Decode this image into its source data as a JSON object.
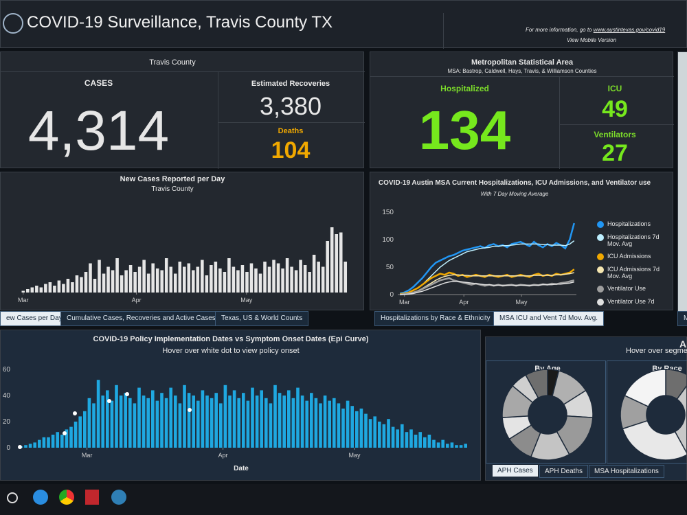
{
  "header": {
    "title": "COVID-19 Surveillance, Travis County TX",
    "info": "For more information, go to",
    "link": "www.austintexas.gov/covid19",
    "mobile": "View Mobile Version"
  },
  "travis": {
    "title": "Travis County",
    "cases_label": "CASES",
    "cases": "4,314",
    "recoveries_label": "Estimated Recoveries",
    "recoveries": "3,380",
    "deaths_label": "Deaths",
    "deaths": "104"
  },
  "msa": {
    "title": "Metropolitan Statistical Area",
    "subtitle": "MSA: Bastrop, Caldwell, Hays, Travis, & Williamson Counties",
    "hosp_label": "Hospitalized",
    "hosp": "134",
    "icu_label": "ICU",
    "icu": "49",
    "vent_label": "Ventilators",
    "vent": "27"
  },
  "tabs": [
    "ew Cases per Day",
    "Cumulative Cases, Recoveries and Active Cases",
    "Texas, US & World Counts",
    "Hospitalizations by Race & Ethnicity",
    "MSA ICU and Vent 7d Mov. Avg.",
    "M"
  ],
  "right_panel": {
    "title": "A",
    "subtitle": "Hover over segme",
    "tabs": [
      "APH Cases",
      "APH Deaths",
      "MSA Hospitalizations"
    ]
  },
  "chart_data": [
    {
      "type": "bar",
      "title": "New Cases Reported per Day",
      "subtitle": "Travis County",
      "color": "#e6e6e6",
      "grid": false,
      "xlim": [
        0,
        76
      ],
      "ylim": [
        0,
        100
      ],
      "xticks": [
        {
          "value": 3.5,
          "label": "Mar"
        },
        {
          "value": 28.8,
          "label": "Apr"
        },
        {
          "value": 53.4,
          "label": "May"
        }
      ],
      "values": [
        0,
        0,
        0,
        2,
        4,
        6,
        8,
        6,
        10,
        12,
        8,
        14,
        10,
        16,
        12,
        20,
        18,
        24,
        34,
        16,
        38,
        22,
        30,
        26,
        40,
        20,
        26,
        32,
        24,
        30,
        38,
        22,
        34,
        28,
        26,
        40,
        30,
        22,
        36,
        30,
        34,
        26,
        30,
        38,
        20,
        32,
        36,
        28,
        24,
        40,
        30,
        26,
        32,
        24,
        34,
        28,
        22,
        36,
        30,
        38,
        34,
        28,
        40,
        30,
        26,
        38,
        32,
        24,
        44,
        36,
        30,
        60,
        76,
        68,
        70,
        36
      ]
    },
    {
      "type": "line",
      "title": "COVID-19 Austin MSA Current Hospitalizations, ICU Admissions, and Ventilator use",
      "subtitle": "With 7 Day Moving Average",
      "grid": false,
      "xlim": [
        0,
        40
      ],
      "ylim": [
        0,
        150
      ],
      "yticks": [
        0,
        50,
        100,
        150
      ],
      "xticks": [
        {
          "value": 1.5,
          "label": "Mar"
        },
        {
          "value": 14.8,
          "label": "Apr"
        },
        {
          "value": 27.7,
          "label": "May"
        }
      ],
      "series": [
        {
          "name": "Hospitalizations",
          "color": "#2196f3",
          "values": [
            2,
            4,
            8,
            14,
            22,
            30,
            40,
            50,
            58,
            62,
            66,
            70,
            72,
            76,
            80,
            82,
            84,
            86,
            88,
            85,
            90,
            92,
            88,
            90,
            86,
            92,
            94,
            96,
            92,
            88,
            96,
            90,
            86,
            92,
            88,
            94,
            90,
            84,
            100,
            130
          ]
        },
        {
          "name": "Hospitalizations 7d Mov. Avg",
          "color": "#bdefff",
          "values": [
            1,
            2,
            4,
            8,
            12,
            18,
            26,
            34,
            42,
            50,
            56,
            62,
            66,
            70,
            74,
            78,
            80,
            82,
            84,
            85,
            86,
            88,
            88,
            89,
            89,
            90,
            91,
            92,
            92,
            92,
            92,
            92,
            91,
            91,
            90,
            90,
            90,
            89,
            92,
            98
          ]
        },
        {
          "name": "ICU Admissions",
          "color": "#f0a800",
          "values": [
            1,
            2,
            4,
            8,
            12,
            18,
            24,
            30,
            34,
            38,
            36,
            40,
            38,
            34,
            36,
            32,
            34,
            36,
            34,
            32,
            36,
            34,
            32,
            34,
            36,
            32,
            34,
            36,
            34,
            32,
            36,
            38,
            34,
            36,
            34,
            38,
            36,
            38,
            40,
            46
          ]
        },
        {
          "name": "ICU Admissions 7d Mov. Avg",
          "color": "#f5e6b0",
          "values": [
            0,
            1,
            2,
            4,
            7,
            11,
            16,
            21,
            26,
            30,
            33,
            35,
            36,
            36,
            35,
            35,
            34,
            34,
            34,
            34,
            34,
            34,
            34,
            34,
            34,
            34,
            34,
            34,
            34,
            34,
            35,
            35,
            35,
            35,
            35,
            36,
            36,
            37,
            38,
            40
          ]
        },
        {
          "name": "Ventilator Use",
          "color": "#9e9e9e",
          "values": [
            0,
            1,
            2,
            4,
            6,
            10,
            14,
            18,
            22,
            26,
            28,
            30,
            26,
            24,
            22,
            20,
            18,
            20,
            18,
            16,
            18,
            16,
            18,
            16,
            17,
            18,
            16,
            18,
            17,
            16,
            18,
            17,
            19,
            18,
            20,
            19,
            21,
            22,
            24,
            26
          ]
        },
        {
          "name": "Ventilator Use 7d",
          "color": "#e0e0e0",
          "values": [
            0,
            0,
            1,
            2,
            4,
            6,
            9,
            12,
            15,
            18,
            21,
            23,
            24,
            24,
            23,
            22,
            21,
            20,
            19,
            18,
            18,
            17,
            17,
            17,
            17,
            17,
            17,
            17,
            17,
            17,
            17,
            17,
            18,
            18,
            18,
            19,
            19,
            20,
            21,
            23
          ]
        }
      ]
    },
    {
      "type": "bar",
      "title": "COVID-19 Policy Implementation Dates vs Symptom Onset Dates (Epi Curve)",
      "subtitle": "Hover over white dot to view policy onset",
      "x_label": "Date",
      "color": "#1fa8e0",
      "grid": false,
      "xlim": [
        0,
        100
      ],
      "ylim": [
        0,
        60
      ],
      "yticks": [
        0,
        20,
        40,
        60
      ],
      "xticks": [
        {
          "value": 16,
          "label": "Mar"
        },
        {
          "value": 46,
          "label": "Apr"
        },
        {
          "value": 75,
          "label": "May"
        }
      ],
      "values": [
        0,
        1,
        2,
        3,
        4,
        6,
        8,
        8,
        10,
        12,
        10,
        14,
        16,
        20,
        24,
        28,
        38,
        34,
        52,
        40,
        44,
        36,
        48,
        40,
        42,
        38,
        34,
        46,
        40,
        38,
        44,
        36,
        42,
        38,
        46,
        40,
        34,
        48,
        42,
        40,
        36,
        44,
        40,
        38,
        42,
        34,
        48,
        40,
        44,
        38,
        42,
        36,
        46,
        40,
        44,
        38,
        34,
        48,
        42,
        40,
        44,
        38,
        46,
        40,
        36,
        42,
        38,
        34,
        40,
        36,
        38,
        34,
        30,
        36,
        32,
        28,
        30,
        26,
        22,
        24,
        20,
        18,
        22,
        16,
        14,
        18,
        12,
        14,
        10,
        12,
        8,
        10,
        6,
        4,
        6,
        3,
        4,
        2,
        2,
        3
      ]
    },
    {
      "type": "pie",
      "title": "By Age",
      "values": [
        4,
        12,
        10,
        16,
        14,
        10,
        8,
        12,
        6,
        8
      ],
      "colors": [
        "#1a1a1a",
        "#b0b0b0",
        "#d8d8d8",
        "#9a9a9a",
        "#c4c4c4",
        "#8c8c8c",
        "#e4e4e4",
        "#a8a8a8",
        "#cfcfcf",
        "#6e6e6e"
      ]
    },
    {
      "type": "pie",
      "title": "By Race",
      "values": [
        10,
        32,
        28,
        12,
        18
      ],
      "colors": [
        "#6e6e6e",
        "#c8c8c8",
        "#e8e8e8",
        "#a0a0a0",
        "#f4f4f4"
      ]
    }
  ]
}
